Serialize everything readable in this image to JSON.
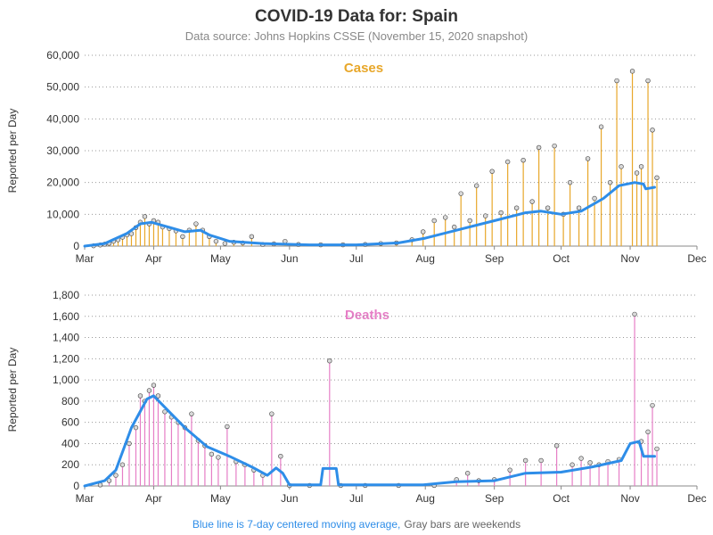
{
  "title": "COVID-19 Data for: Spain",
  "subtitle": "Data source: Johns Hopkins CSSE (November 15, 2020 snapshot)",
  "footnote": {
    "blue": "Blue line is 7-day centered moving average,",
    "gray": "Gray bars are weekends"
  },
  "colors": {
    "cases": "#E8A72A",
    "deaths": "#E67EC6",
    "avg": "#2E8DE8",
    "grid": "#999999",
    "marker_fill": "#D9D9D9",
    "marker_stroke": "#444444"
  },
  "chart_data": [
    {
      "type": "bar",
      "panel_title": "Cases",
      "ylabel": "Reported per Day",
      "ylim": [
        0,
        60000
      ],
      "yticks": [
        "0",
        "10,000",
        "20,000",
        "30,000",
        "40,000",
        "50,000",
        "60,000"
      ],
      "ytick_values": [
        0,
        10000,
        20000,
        30000,
        40000,
        50000,
        60000
      ],
      "xlim": [
        "2020-03-01",
        "2020-12-01"
      ],
      "xticks": [
        "Mar",
        "Apr",
        "May",
        "Jun",
        "Jul",
        "Aug",
        "Sep",
        "Oct",
        "Nov",
        "Dec"
      ],
      "grid": "horizontal dotted",
      "series_daily": [
        {
          "x": "2020-03-05",
          "y": 100
        },
        {
          "x": "2020-03-08",
          "y": 350
        },
        {
          "x": "2020-03-10",
          "y": 600
        },
        {
          "x": "2020-03-12",
          "y": 900
        },
        {
          "x": "2020-03-14",
          "y": 1500
        },
        {
          "x": "2020-03-16",
          "y": 2000
        },
        {
          "x": "2020-03-18",
          "y": 2800
        },
        {
          "x": "2020-03-20",
          "y": 3500
        },
        {
          "x": "2020-03-22",
          "y": 3900
        },
        {
          "x": "2020-03-24",
          "y": 5800
        },
        {
          "x": "2020-03-26",
          "y": 7500
        },
        {
          "x": "2020-03-28",
          "y": 9300
        },
        {
          "x": "2020-03-30",
          "y": 7000
        },
        {
          "x": "2020-04-01",
          "y": 8000
        },
        {
          "x": "2020-04-03",
          "y": 7500
        },
        {
          "x": "2020-04-05",
          "y": 6000
        },
        {
          "x": "2020-04-08",
          "y": 5500
        },
        {
          "x": "2020-04-11",
          "y": 4800
        },
        {
          "x": "2020-04-14",
          "y": 3000
        },
        {
          "x": "2020-04-17",
          "y": 5000
        },
        {
          "x": "2020-04-20",
          "y": 7000
        },
        {
          "x": "2020-04-23",
          "y": 5000
        },
        {
          "x": "2020-04-26",
          "y": 3000
        },
        {
          "x": "2020-04-29",
          "y": 1500
        },
        {
          "x": "2020-05-03",
          "y": 800
        },
        {
          "x": "2020-05-07",
          "y": 1200
        },
        {
          "x": "2020-05-11",
          "y": 1000
        },
        {
          "x": "2020-05-15",
          "y": 3000
        },
        {
          "x": "2020-05-20",
          "y": 500
        },
        {
          "x": "2020-05-25",
          "y": 700
        },
        {
          "x": "2020-05-30",
          "y": 1500
        },
        {
          "x": "2020-06-05",
          "y": 500
        },
        {
          "x": "2020-06-15",
          "y": 400
        },
        {
          "x": "2020-06-25",
          "y": 400
        },
        {
          "x": "2020-07-05",
          "y": 500
        },
        {
          "x": "2020-07-12",
          "y": 800
        },
        {
          "x": "2020-07-19",
          "y": 1000
        },
        {
          "x": "2020-07-26",
          "y": 2000
        },
        {
          "x": "2020-07-31",
          "y": 4500
        },
        {
          "x": "2020-08-05",
          "y": 8000
        },
        {
          "x": "2020-08-10",
          "y": 9000
        },
        {
          "x": "2020-08-14",
          "y": 6000
        },
        {
          "x": "2020-08-17",
          "y": 16500
        },
        {
          "x": "2020-08-21",
          "y": 8000
        },
        {
          "x": "2020-08-24",
          "y": 19000
        },
        {
          "x": "2020-08-28",
          "y": 9500
        },
        {
          "x": "2020-08-31",
          "y": 23500
        },
        {
          "x": "2020-09-04",
          "y": 10500
        },
        {
          "x": "2020-09-07",
          "y": 26500
        },
        {
          "x": "2020-09-11",
          "y": 12000
        },
        {
          "x": "2020-09-14",
          "y": 27000
        },
        {
          "x": "2020-09-18",
          "y": 14000
        },
        {
          "x": "2020-09-21",
          "y": 31000
        },
        {
          "x": "2020-09-25",
          "y": 12000
        },
        {
          "x": "2020-09-28",
          "y": 31500
        },
        {
          "x": "2020-10-02",
          "y": 10000
        },
        {
          "x": "2020-10-05",
          "y": 20000
        },
        {
          "x": "2020-10-09",
          "y": 12000
        },
        {
          "x": "2020-10-13",
          "y": 27500
        },
        {
          "x": "2020-10-16",
          "y": 15000
        },
        {
          "x": "2020-10-19",
          "y": 37500
        },
        {
          "x": "2020-10-23",
          "y": 20000
        },
        {
          "x": "2020-10-26",
          "y": 52000
        },
        {
          "x": "2020-10-28",
          "y": 25000
        },
        {
          "x": "2020-11-02",
          "y": 55000
        },
        {
          "x": "2020-11-04",
          "y": 23000
        },
        {
          "x": "2020-11-06",
          "y": 25000
        },
        {
          "x": "2020-11-09",
          "y": 52000
        },
        {
          "x": "2020-11-11",
          "y": 36500
        },
        {
          "x": "2020-11-13",
          "y": 21500
        }
      ],
      "series_avg": [
        {
          "x": "2020-03-01",
          "y": 0
        },
        {
          "x": "2020-03-10",
          "y": 800
        },
        {
          "x": "2020-03-20",
          "y": 4000
        },
        {
          "x": "2020-03-26",
          "y": 7000
        },
        {
          "x": "2020-03-31",
          "y": 7500
        },
        {
          "x": "2020-04-05",
          "y": 6500
        },
        {
          "x": "2020-04-15",
          "y": 4500
        },
        {
          "x": "2020-04-22",
          "y": 5000
        },
        {
          "x": "2020-04-26",
          "y": 3500
        },
        {
          "x": "2020-05-05",
          "y": 1500
        },
        {
          "x": "2020-05-20",
          "y": 800
        },
        {
          "x": "2020-06-10",
          "y": 400
        },
        {
          "x": "2020-07-01",
          "y": 400
        },
        {
          "x": "2020-07-20",
          "y": 1000
        },
        {
          "x": "2020-08-01",
          "y": 2500
        },
        {
          "x": "2020-08-15",
          "y": 5000
        },
        {
          "x": "2020-09-01",
          "y": 8000
        },
        {
          "x": "2020-09-15",
          "y": 10500
        },
        {
          "x": "2020-09-22",
          "y": 11000
        },
        {
          "x": "2020-10-01",
          "y": 10000
        },
        {
          "x": "2020-10-10",
          "y": 11000
        },
        {
          "x": "2020-10-20",
          "y": 15000
        },
        {
          "x": "2020-10-27",
          "y": 19000
        },
        {
          "x": "2020-11-03",
          "y": 20000
        },
        {
          "x": "2020-11-07",
          "y": 19500
        },
        {
          "x": "2020-11-08",
          "y": 18000
        },
        {
          "x": "2020-11-12",
          "y": 18500
        }
      ]
    },
    {
      "type": "bar",
      "panel_title": "Deaths",
      "ylabel": "Reported per Day",
      "ylim": [
        0,
        1800
      ],
      "yticks": [
        "0",
        "200",
        "400",
        "600",
        "800",
        "1,000",
        "1,200",
        "1,400",
        "1,600",
        "1,800"
      ],
      "ytick_values": [
        0,
        200,
        400,
        600,
        800,
        1000,
        1200,
        1400,
        1600,
        1800
      ],
      "xlim": [
        "2020-03-01",
        "2020-12-01"
      ],
      "xticks": [
        "Mar",
        "Apr",
        "May",
        "Jun",
        "Jul",
        "Aug",
        "Sep",
        "Oct",
        "Nov",
        "Dec"
      ],
      "grid": "horizontal dotted",
      "series_daily": [
        {
          "x": "2020-03-08",
          "y": 10
        },
        {
          "x": "2020-03-12",
          "y": 50
        },
        {
          "x": "2020-03-15",
          "y": 100
        },
        {
          "x": "2020-03-18",
          "y": 200
        },
        {
          "x": "2020-03-21",
          "y": 400
        },
        {
          "x": "2020-03-24",
          "y": 550
        },
        {
          "x": "2020-03-26",
          "y": 850
        },
        {
          "x": "2020-03-28",
          "y": 800
        },
        {
          "x": "2020-03-30",
          "y": 900
        },
        {
          "x": "2020-04-01",
          "y": 950
        },
        {
          "x": "2020-04-03",
          "y": 850
        },
        {
          "x": "2020-04-06",
          "y": 700
        },
        {
          "x": "2020-04-09",
          "y": 650
        },
        {
          "x": "2020-04-12",
          "y": 600
        },
        {
          "x": "2020-04-15",
          "y": 550
        },
        {
          "x": "2020-04-18",
          "y": 680
        },
        {
          "x": "2020-04-21",
          "y": 430
        },
        {
          "x": "2020-04-24",
          "y": 380
        },
        {
          "x": "2020-04-27",
          "y": 300
        },
        {
          "x": "2020-04-30",
          "y": 270
        },
        {
          "x": "2020-05-04",
          "y": 560
        },
        {
          "x": "2020-05-08",
          "y": 230
        },
        {
          "x": "2020-05-12",
          "y": 200
        },
        {
          "x": "2020-05-16",
          "y": 150
        },
        {
          "x": "2020-05-20",
          "y": 100
        },
        {
          "x": "2020-05-24",
          "y": 680
        },
        {
          "x": "2020-05-28",
          "y": 280
        },
        {
          "x": "2020-06-01",
          "y": 5
        },
        {
          "x": "2020-06-10",
          "y": 5
        },
        {
          "x": "2020-06-19",
          "y": 1180
        },
        {
          "x": "2020-06-24",
          "y": 5
        },
        {
          "x": "2020-07-05",
          "y": 5
        },
        {
          "x": "2020-07-20",
          "y": 5
        },
        {
          "x": "2020-08-05",
          "y": 5
        },
        {
          "x": "2020-08-15",
          "y": 60
        },
        {
          "x": "2020-08-20",
          "y": 120
        },
        {
          "x": "2020-08-25",
          "y": 50
        },
        {
          "x": "2020-09-01",
          "y": 60
        },
        {
          "x": "2020-09-08",
          "y": 150
        },
        {
          "x": "2020-09-15",
          "y": 240
        },
        {
          "x": "2020-09-22",
          "y": 240
        },
        {
          "x": "2020-09-29",
          "y": 380
        },
        {
          "x": "2020-10-06",
          "y": 200
        },
        {
          "x": "2020-10-10",
          "y": 260
        },
        {
          "x": "2020-10-14",
          "y": 220
        },
        {
          "x": "2020-10-18",
          "y": 200
        },
        {
          "x": "2020-10-22",
          "y": 230
        },
        {
          "x": "2020-10-27",
          "y": 250
        },
        {
          "x": "2020-11-03",
          "y": 1620
        },
        {
          "x": "2020-11-06",
          "y": 420
        },
        {
          "x": "2020-11-09",
          "y": 510
        },
        {
          "x": "2020-11-11",
          "y": 760
        },
        {
          "x": "2020-11-13",
          "y": 350
        }
      ],
      "series_avg": [
        {
          "x": "2020-03-01",
          "y": 0
        },
        {
          "x": "2020-03-10",
          "y": 50
        },
        {
          "x": "2020-03-15",
          "y": 150
        },
        {
          "x": "2020-03-22",
          "y": 550
        },
        {
          "x": "2020-03-29",
          "y": 820
        },
        {
          "x": "2020-04-01",
          "y": 850
        },
        {
          "x": "2020-04-08",
          "y": 700
        },
        {
          "x": "2020-04-15",
          "y": 550
        },
        {
          "x": "2020-04-25",
          "y": 370
        },
        {
          "x": "2020-05-05",
          "y": 280
        },
        {
          "x": "2020-05-15",
          "y": 180
        },
        {
          "x": "2020-05-22",
          "y": 100
        },
        {
          "x": "2020-05-26",
          "y": 170
        },
        {
          "x": "2020-05-29",
          "y": 120
        },
        {
          "x": "2020-06-01",
          "y": 10
        },
        {
          "x": "2020-06-15",
          "y": 10
        },
        {
          "x": "2020-06-16",
          "y": 165
        },
        {
          "x": "2020-06-22",
          "y": 165
        },
        {
          "x": "2020-06-23",
          "y": 10
        },
        {
          "x": "2020-07-31",
          "y": 10
        },
        {
          "x": "2020-08-15",
          "y": 40
        },
        {
          "x": "2020-09-01",
          "y": 50
        },
        {
          "x": "2020-09-15",
          "y": 120
        },
        {
          "x": "2020-10-01",
          "y": 130
        },
        {
          "x": "2020-10-15",
          "y": 180
        },
        {
          "x": "2020-10-28",
          "y": 240
        },
        {
          "x": "2020-11-01",
          "y": 400
        },
        {
          "x": "2020-11-05",
          "y": 420
        },
        {
          "x": "2020-11-07",
          "y": 280
        },
        {
          "x": "2020-11-12",
          "y": 280
        }
      ]
    }
  ]
}
